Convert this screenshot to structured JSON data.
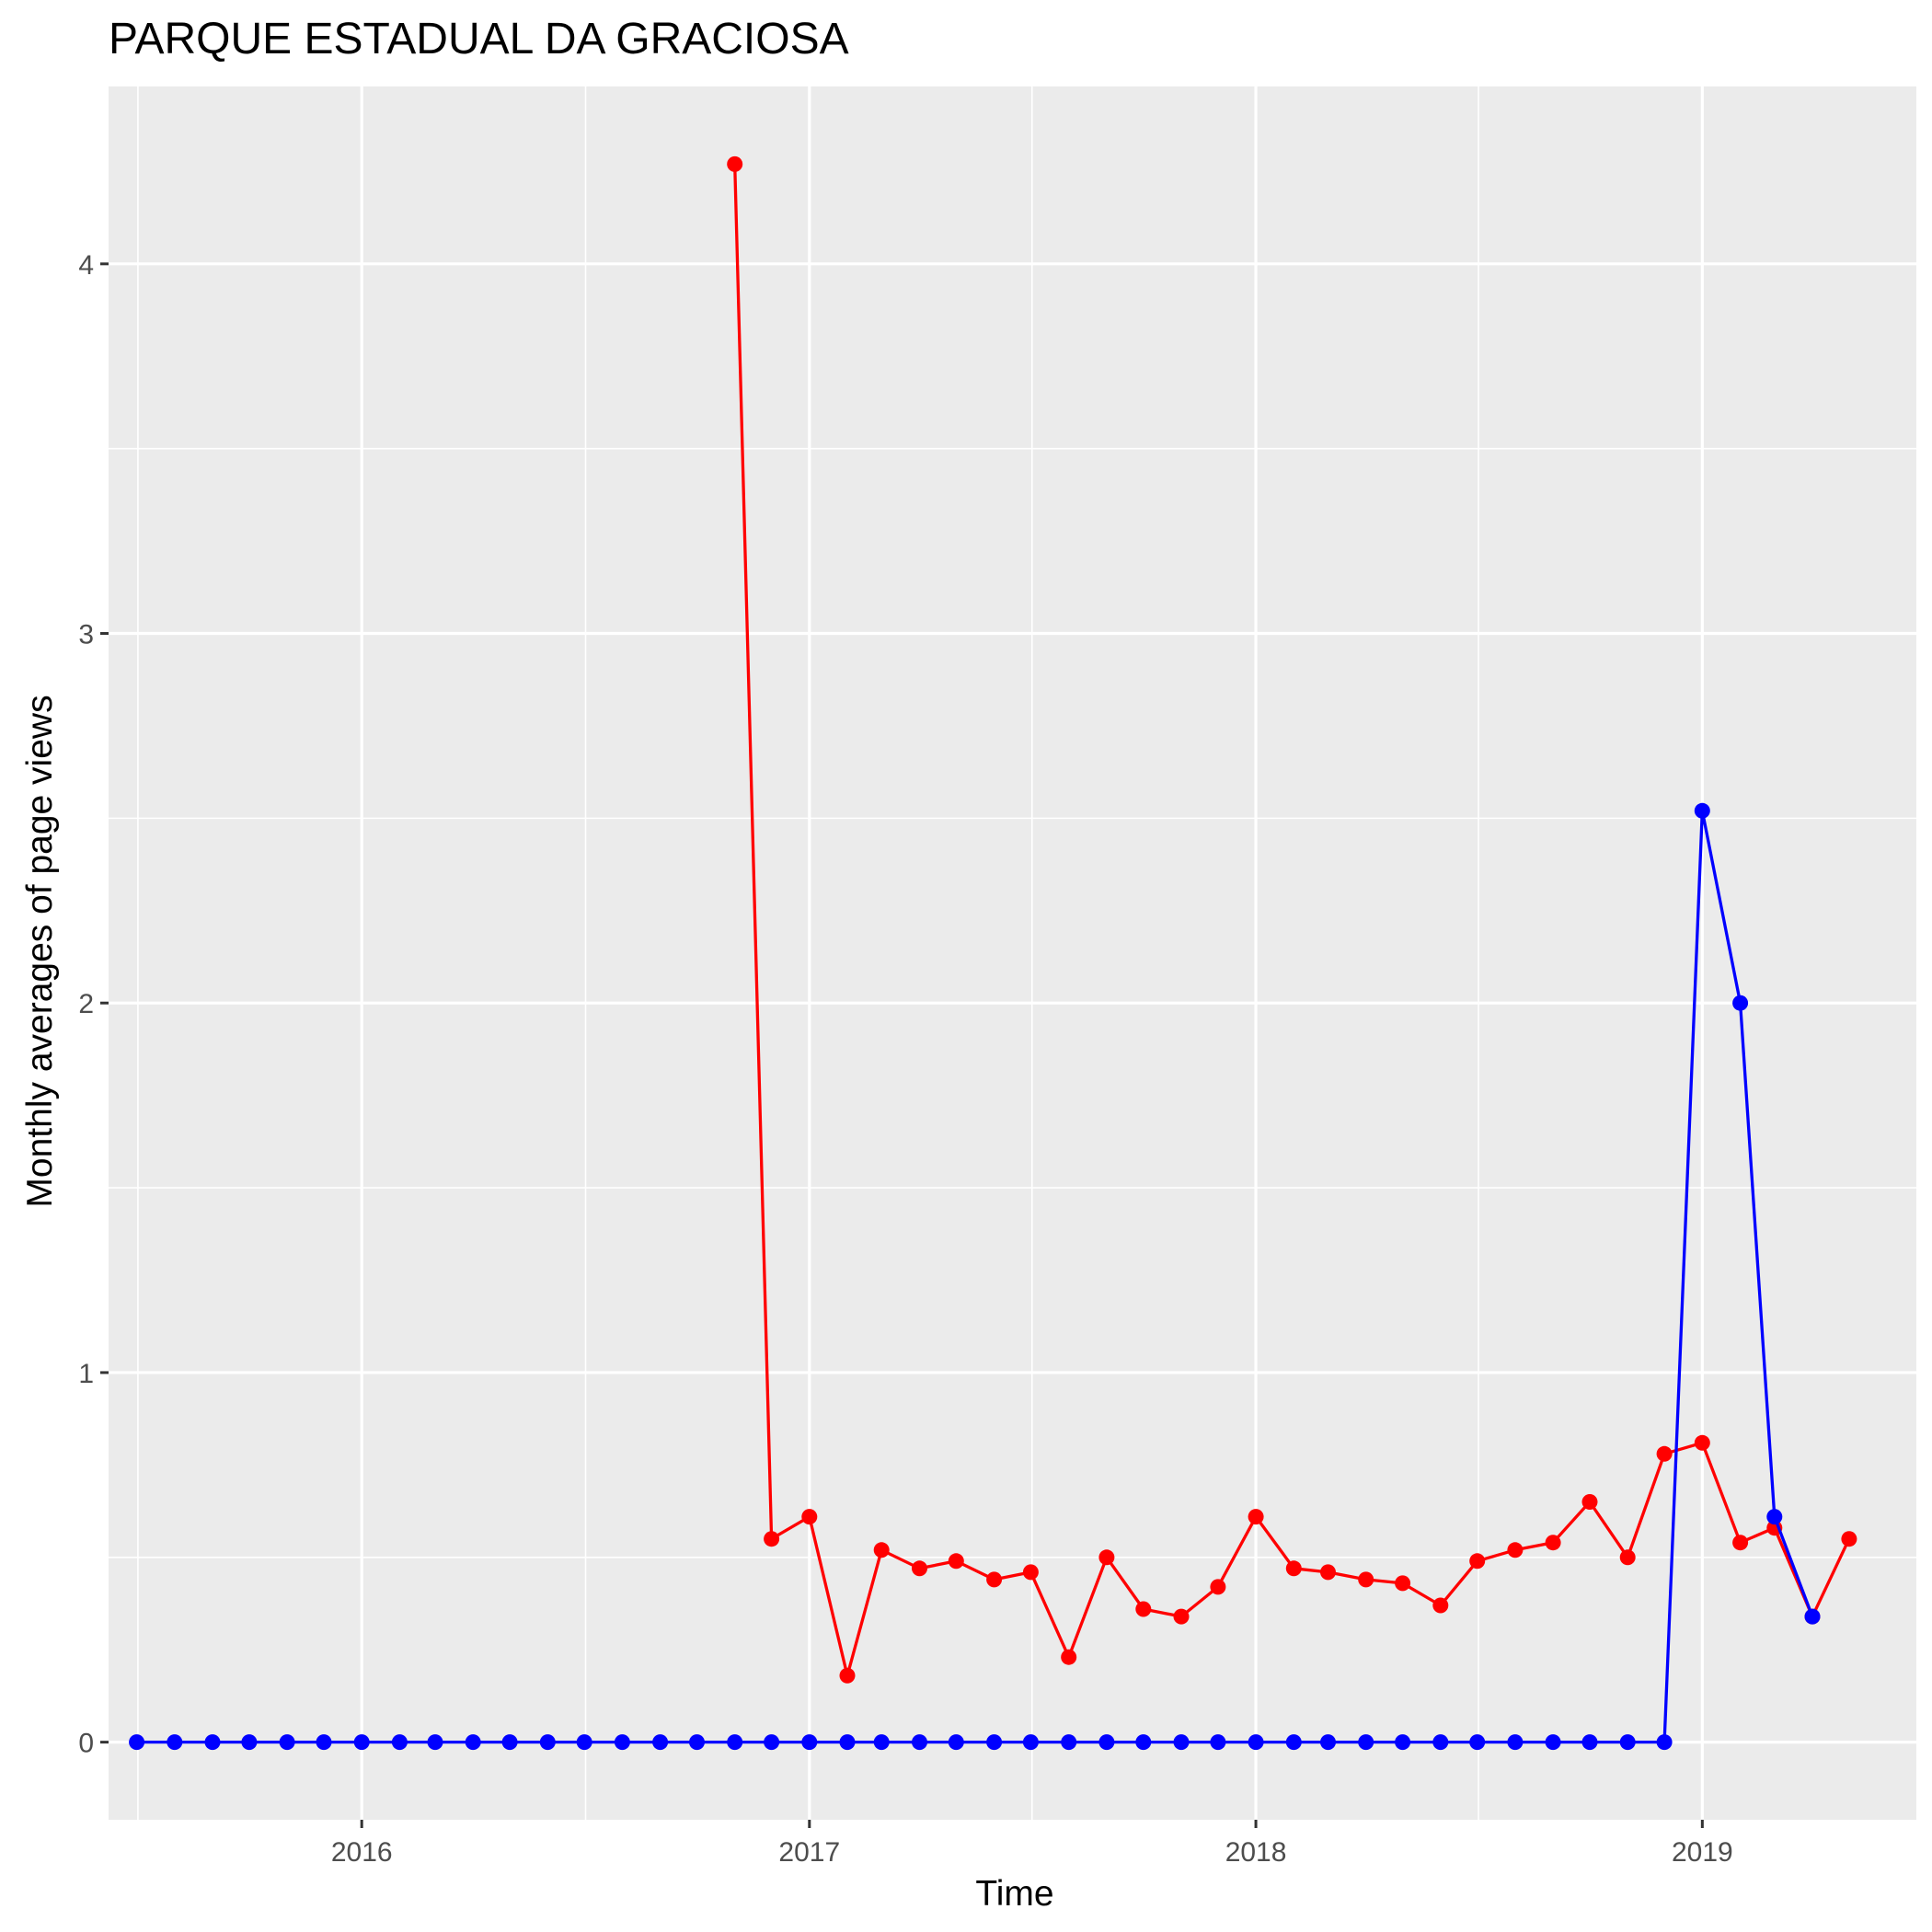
{
  "chart_data": {
    "type": "line",
    "title": "PARQUE ESTADUAL DA GRACIOSA",
    "xlabel": "Time",
    "ylabel": "Monthly averages of page views",
    "x_ticks": [
      "2016",
      "2017",
      "2018",
      "2019"
    ],
    "y_ticks": [
      "0",
      "1",
      "2",
      "3",
      "4"
    ],
    "xlim": [
      "2015-06-08",
      "2019-06-25"
    ],
    "ylim": [
      -0.21,
      4.48
    ],
    "grid": true,
    "legend": "none",
    "colors": {
      "panel": "#ebebeb",
      "grid": "#ffffff",
      "red": "#ff0000",
      "blue": "#0000ff"
    },
    "series": [
      {
        "color": "#ff0000",
        "points": [
          [
            "2016-11-01",
            4.27
          ],
          [
            "2016-12-01",
            0.55
          ],
          [
            "2017-01-01",
            0.61
          ],
          [
            "2017-02-01",
            0.18
          ],
          [
            "2017-03-01",
            0.52
          ],
          [
            "2017-04-01",
            0.47
          ],
          [
            "2017-05-01",
            0.49
          ],
          [
            "2017-06-01",
            0.44
          ],
          [
            "2017-07-01",
            0.46
          ],
          [
            "2017-08-01",
            0.23
          ],
          [
            "2017-09-01",
            0.5
          ],
          [
            "2017-10-01",
            0.36
          ],
          [
            "2017-11-01",
            0.34
          ],
          [
            "2017-12-01",
            0.42
          ],
          [
            "2018-01-01",
            0.61
          ],
          [
            "2018-02-01",
            0.47
          ],
          [
            "2018-03-01",
            0.46
          ],
          [
            "2018-04-01",
            0.44
          ],
          [
            "2018-05-01",
            0.43
          ],
          [
            "2018-06-01",
            0.37
          ],
          [
            "2018-07-01",
            0.49
          ],
          [
            "2018-08-01",
            0.52
          ],
          [
            "2018-09-01",
            0.54
          ],
          [
            "2018-10-01",
            0.65
          ],
          [
            "2018-11-01",
            0.5
          ],
          [
            "2018-12-01",
            0.78
          ],
          [
            "2019-01-01",
            0.81
          ],
          [
            "2019-02-01",
            0.54
          ],
          [
            "2019-03-01",
            0.58
          ],
          [
            "2019-04-01",
            0.34
          ],
          [
            "2019-05-01",
            0.55
          ]
        ]
      },
      {
        "color": "#0000ff",
        "points": [
          [
            "2015-07-01",
            0
          ],
          [
            "2015-08-01",
            0
          ],
          [
            "2015-09-01",
            0
          ],
          [
            "2015-10-01",
            0
          ],
          [
            "2015-11-01",
            0
          ],
          [
            "2015-12-01",
            0
          ],
          [
            "2016-01-01",
            0
          ],
          [
            "2016-02-01",
            0
          ],
          [
            "2016-03-01",
            0
          ],
          [
            "2016-04-01",
            0
          ],
          [
            "2016-05-01",
            0
          ],
          [
            "2016-06-01",
            0
          ],
          [
            "2016-07-01",
            0
          ],
          [
            "2016-08-01",
            0
          ],
          [
            "2016-09-01",
            0
          ],
          [
            "2016-10-01",
            0
          ],
          [
            "2016-11-01",
            0
          ],
          [
            "2016-12-01",
            0
          ],
          [
            "2017-01-01",
            0
          ],
          [
            "2017-02-01",
            0
          ],
          [
            "2017-03-01",
            0
          ],
          [
            "2017-04-01",
            0
          ],
          [
            "2017-05-01",
            0
          ],
          [
            "2017-06-01",
            0
          ],
          [
            "2017-07-01",
            0
          ],
          [
            "2017-08-01",
            0
          ],
          [
            "2017-09-01",
            0
          ],
          [
            "2017-10-01",
            0
          ],
          [
            "2017-11-01",
            0
          ],
          [
            "2017-12-01",
            0
          ],
          [
            "2018-01-01",
            0
          ],
          [
            "2018-02-01",
            0
          ],
          [
            "2018-03-01",
            0
          ],
          [
            "2018-04-01",
            0
          ],
          [
            "2018-05-01",
            0
          ],
          [
            "2018-06-01",
            0
          ],
          [
            "2018-07-01",
            0
          ],
          [
            "2018-08-01",
            0
          ],
          [
            "2018-09-01",
            0
          ],
          [
            "2018-10-01",
            0
          ],
          [
            "2018-11-01",
            0
          ],
          [
            "2018-12-01",
            0
          ],
          [
            "2019-01-01",
            2.52
          ],
          [
            "2019-02-01",
            2.0
          ],
          [
            "2019-03-01",
            0.61
          ],
          [
            "2019-04-01",
            0.34
          ]
        ]
      }
    ]
  }
}
